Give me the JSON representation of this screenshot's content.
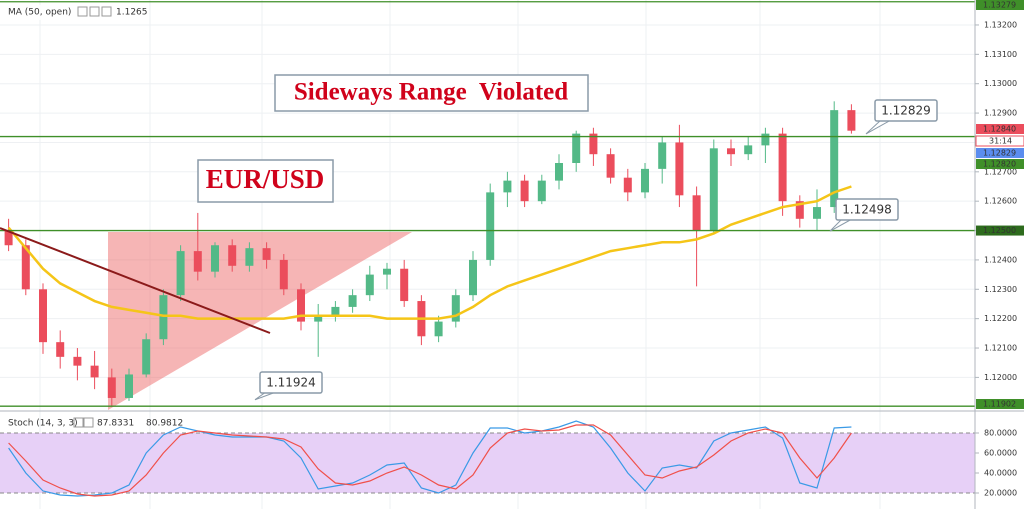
{
  "chart_data": [
    {
      "type": "candlestick",
      "title": "Sideways Range  Violated",
      "subtitle": "EUR/USD",
      "up_color": "#53b987",
      "down_color": "#eb4d5c",
      "open": [
        1.125,
        1.1245,
        1.123,
        1.1212,
        1.1207,
        1.1204,
        1.12,
        1.1193,
        1.1201,
        1.1213,
        1.1228,
        1.1243,
        1.1236,
        1.1245,
        1.1238,
        1.1244,
        1.124,
        1.123,
        1.1219,
        1.1221,
        1.1224,
        1.1228,
        1.1235,
        1.1237,
        1.1226,
        1.1214,
        1.1219,
        1.1228,
        1.124,
        1.1263,
        1.1267,
        1.126,
        1.1267,
        1.1273,
        1.1283,
        1.1276,
        1.1268,
        1.1263,
        1.1271,
        1.128,
        1.1262,
        1.125,
        1.1278,
        1.1276,
        1.1279,
        1.1283,
        1.126,
        1.1254,
        1.1258,
        1.1291
      ],
      "high": [
        1.1254,
        1.1247,
        1.1232,
        1.1216,
        1.121,
        1.1209,
        1.1203,
        1.1203,
        1.1215,
        1.123,
        1.1245,
        1.1256,
        1.1246,
        1.1247,
        1.1246,
        1.1246,
        1.1242,
        1.1232,
        1.1225,
        1.1226,
        1.123,
        1.1238,
        1.1239,
        1.124,
        1.1228,
        1.1221,
        1.123,
        1.1243,
        1.1266,
        1.127,
        1.1269,
        1.1269,
        1.1276,
        1.1284,
        1.1285,
        1.1278,
        1.1271,
        1.1273,
        1.1282,
        1.1286,
        1.1265,
        1.1281,
        1.1281,
        1.1282,
        1.1285,
        1.1285,
        1.1262,
        1.1264,
        1.1294,
        1.1293
      ],
      "low": [
        1.1243,
        1.1228,
        1.1208,
        1.1203,
        1.1199,
        1.1196,
        1.119,
        1.1192,
        1.12,
        1.1211,
        1.1226,
        1.1233,
        1.1234,
        1.1236,
        1.1236,
        1.1237,
        1.1228,
        1.1216,
        1.1207,
        1.1219,
        1.1222,
        1.1226,
        1.123,
        1.1224,
        1.1211,
        1.1212,
        1.1217,
        1.1226,
        1.1238,
        1.1258,
        1.1258,
        1.1259,
        1.1264,
        1.127,
        1.1272,
        1.1266,
        1.126,
        1.1261,
        1.1266,
        1.1258,
        1.1231,
        1.1249,
        1.1272,
        1.1274,
        1.1273,
        1.1255,
        1.1251,
        1.125,
        1.1256,
        1.1283
      ],
      "close": [
        1.1245,
        1.123,
        1.1212,
        1.1207,
        1.1204,
        1.12,
        1.1193,
        1.1201,
        1.1213,
        1.1228,
        1.1243,
        1.1236,
        1.1245,
        1.1238,
        1.1244,
        1.124,
        1.123,
        1.1219,
        1.1221,
        1.1224,
        1.1228,
        1.1235,
        1.1237,
        1.1226,
        1.1214,
        1.1219,
        1.1228,
        1.124,
        1.1263,
        1.1267,
        1.126,
        1.1267,
        1.1273,
        1.1283,
        1.1276,
        1.1268,
        1.1263,
        1.1271,
        1.128,
        1.1262,
        1.125,
        1.1278,
        1.1276,
        1.1279,
        1.1283,
        1.126,
        1.1254,
        1.1258,
        1.1291,
        1.1284
      ],
      "series": [
        {
          "name": "MA (50, open)",
          "color": "#f5c518",
          "last": 1.1265,
          "values": [
            1.1251,
            1.1244,
            1.1237,
            1.1232,
            1.1229,
            1.1226,
            1.1224,
            1.1223,
            1.1222,
            1.1221,
            1.1221,
            1.122,
            1.122,
            1.122,
            1.122,
            1.122,
            1.122,
            1.1221,
            1.1221,
            1.1221,
            1.1221,
            1.1221,
            1.122,
            1.122,
            1.122,
            1.122,
            1.1221,
            1.1224,
            1.1228,
            1.1231,
            1.1233,
            1.1235,
            1.1237,
            1.1239,
            1.1241,
            1.1243,
            1.1244,
            1.1245,
            1.1246,
            1.1246,
            1.1247,
            1.1249,
            1.1252,
            1.1254,
            1.1256,
            1.1258,
            1.1259,
            1.126,
            1.1263,
            1.1265
          ]
        }
      ],
      "ylim": [
        1.11889,
        1.13285
      ],
      "yticks": [
        {
          "value": 1.132,
          "label": "1.13200"
        },
        {
          "value": 1.131,
          "label": "1.13100"
        },
        {
          "value": 1.13,
          "label": "1.13000"
        },
        {
          "value": 1.129,
          "label": "1.12900"
        },
        {
          "value": 1.128,
          "label": "1.12800"
        },
        {
          "value": 1.127,
          "label": "1.12700"
        },
        {
          "value": 1.126,
          "label": "1.12600"
        },
        {
          "value": 1.125,
          "label": "1.12500"
        },
        {
          "value": 1.124,
          "label": "1.12400"
        },
        {
          "value": 1.123,
          "label": "1.12300"
        },
        {
          "value": 1.122,
          "label": "1.12200"
        },
        {
          "value": 1.121,
          "label": "1.12100"
        },
        {
          "value": 1.12,
          "label": "1.12000"
        }
      ],
      "levels": [
        1.13279,
        {
          "value": 1.1282,
          "label": "1.12820"
        },
        {
          "value": 1.125,
          "label": "1.12500"
        },
        1.11902
      ],
      "level_color": "#3f8f29",
      "price_tags": [
        {
          "value": 1.1284,
          "label": "1.12840",
          "color": "#eb4d5c"
        },
        {
          "value": 1.12829,
          "color": "#5b8def"
        }
      ],
      "countdown": "31:14",
      "callouts": [
        1.12829,
        1.12498,
        1.11924
      ]
    },
    {
      "type": "stochastic",
      "title": "Stoch (14, 3, 3)",
      "series": [
        {
          "color": "#3a9ae6",
          "last": 87.8331,
          "values": [
            65,
            40,
            22,
            18,
            17,
            18,
            20,
            28,
            60,
            78,
            86,
            82,
            78,
            76,
            76,
            76,
            72,
            55,
            24,
            27,
            30,
            38,
            48,
            50,
            25,
            20,
            28,
            60,
            85,
            85,
            80,
            82,
            86,
            92,
            86,
            65,
            40,
            22,
            45,
            48,
            45,
            72,
            80,
            83,
            86,
            75,
            30,
            25,
            85,
            86
          ]
        },
        {
          "color": "#f0504a",
          "last": 80.9812,
          "values": [
            70,
            52,
            33,
            25,
            19,
            17,
            18,
            22,
            38,
            60,
            78,
            82,
            80,
            78,
            77,
            76,
            74,
            66,
            44,
            30,
            28,
            32,
            40,
            46,
            38,
            28,
            24,
            38,
            65,
            80,
            84,
            82,
            83,
            88,
            88,
            78,
            58,
            38,
            35,
            42,
            46,
            58,
            72,
            80,
            84,
            80,
            55,
            35,
            55,
            80
          ]
        }
      ],
      "ylim": [
        4,
        100
      ],
      "yticks": [
        {
          "value": 80,
          "label": "80.0000"
        },
        {
          "value": 60,
          "label": "60.0000"
        },
        {
          "value": 40,
          "label": "40.0000"
        },
        {
          "value": 20,
          "label": "20.0000"
        }
      ],
      "band": [
        20,
        80
      ],
      "band_color": "#e7d0f7"
    }
  ]
}
